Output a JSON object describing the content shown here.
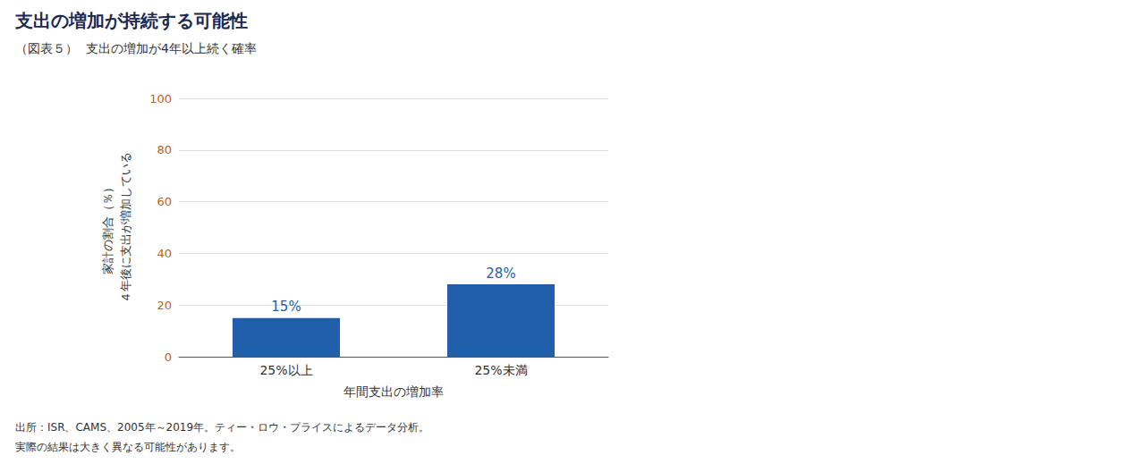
{
  "chart_data": {
    "type": "bar",
    "title": "支出の増加が持続する可能性",
    "subtitle": "（図表５）  支出の増加が4年以上続く確率",
    "categories": [
      "25%以上",
      "25%未満"
    ],
    "values": [
      15,
      28
    ],
    "value_labels": [
      "15%",
      "28%"
    ],
    "data_labels": true,
    "color": "#1F5EA8",
    "xlabel": "年間支出の増加率",
    "ylabel": [
      "４年後に支出が増加している",
      "家計の割合（％）"
    ],
    "ylim": [
      0,
      100
    ],
    "yticks": [
      0,
      20,
      40,
      60,
      80,
      100
    ],
    "grid": true,
    "footnotes": [
      "出所：ISR、CAMS、2005年～2019年。ティー・ロウ・プライスによるデータ分析。",
      "実際の結果は大きく異なる可能性があります。"
    ]
  }
}
